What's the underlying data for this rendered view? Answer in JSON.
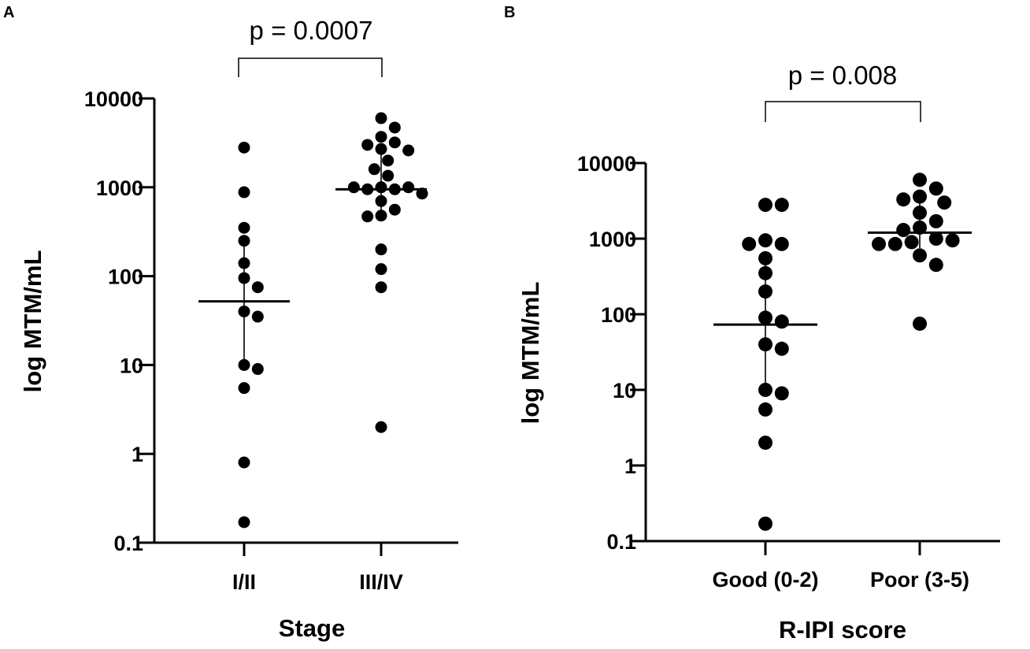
{
  "chart_data": [
    {
      "panel": "A",
      "type": "scatter",
      "title": "",
      "xlabel": "Stage",
      "ylabel": "log MTM/mL",
      "yscale": "log",
      "ylim": [
        0.1,
        10000
      ],
      "yticks": [
        0.1,
        1,
        10,
        100,
        1000,
        10000
      ],
      "ytick_labels": [
        "0.1",
        "1",
        "10",
        "100",
        "1000",
        "10000"
      ],
      "categories": [
        "I/II",
        "III/IV"
      ],
      "groups": [
        {
          "name": "I/II",
          "values": [
            2800,
            880,
            350,
            250,
            140,
            95,
            75,
            40,
            35,
            10,
            9,
            5.5,
            0.8,
            0.17
          ],
          "median": 52,
          "iqr": [
            9.5,
            260
          ]
        },
        {
          "name": "III/IV",
          "values": [
            6000,
            4700,
            3700,
            3200,
            3000,
            2700,
            2600,
            2000,
            1600,
            1350,
            1000,
            950,
            950,
            1000,
            1000,
            850,
            700,
            560,
            480,
            470,
            200,
            120,
            75,
            2
          ],
          "median": 950,
          "iqr": [
            520,
            2800
          ]
        }
      ],
      "annotation": {
        "text": "p = 0.0007",
        "between": [
          "I/II",
          "III/IV"
        ]
      }
    },
    {
      "panel": "B",
      "type": "scatter",
      "title": "",
      "xlabel": "R-IPI score",
      "ylabel": "log MTM/mL",
      "yscale": "log",
      "ylim": [
        0.1,
        10000
      ],
      "yticks": [
        0.1,
        1,
        10,
        100,
        1000,
        10000
      ],
      "ytick_labels": [
        "0.1",
        "1",
        "10",
        "100",
        "1000",
        "10000"
      ],
      "categories": [
        "Good (0-2)",
        "Poor (3-5)"
      ],
      "groups": [
        {
          "name": "Good (0-2)",
          "values": [
            2800,
            2800,
            950,
            850,
            850,
            550,
            350,
            200,
            90,
            80,
            40,
            35,
            10,
            9,
            5.5,
            2,
            0.17
          ],
          "median": 73,
          "iqr": [
            9.5,
            560
          ]
        },
        {
          "name": "Poor (3-5)",
          "values": [
            6000,
            4600,
            3600,
            3300,
            3000,
            2200,
            1700,
            1400,
            1300,
            1000,
            950,
            900,
            850,
            850,
            600,
            450,
            75
          ],
          "median": 1200,
          "iqr": [
            750,
            3100
          ]
        }
      ],
      "annotation": {
        "text": "p = 0.008",
        "between": [
          "Good (0-2)",
          "Poor (3-5)"
        ]
      }
    }
  ]
}
